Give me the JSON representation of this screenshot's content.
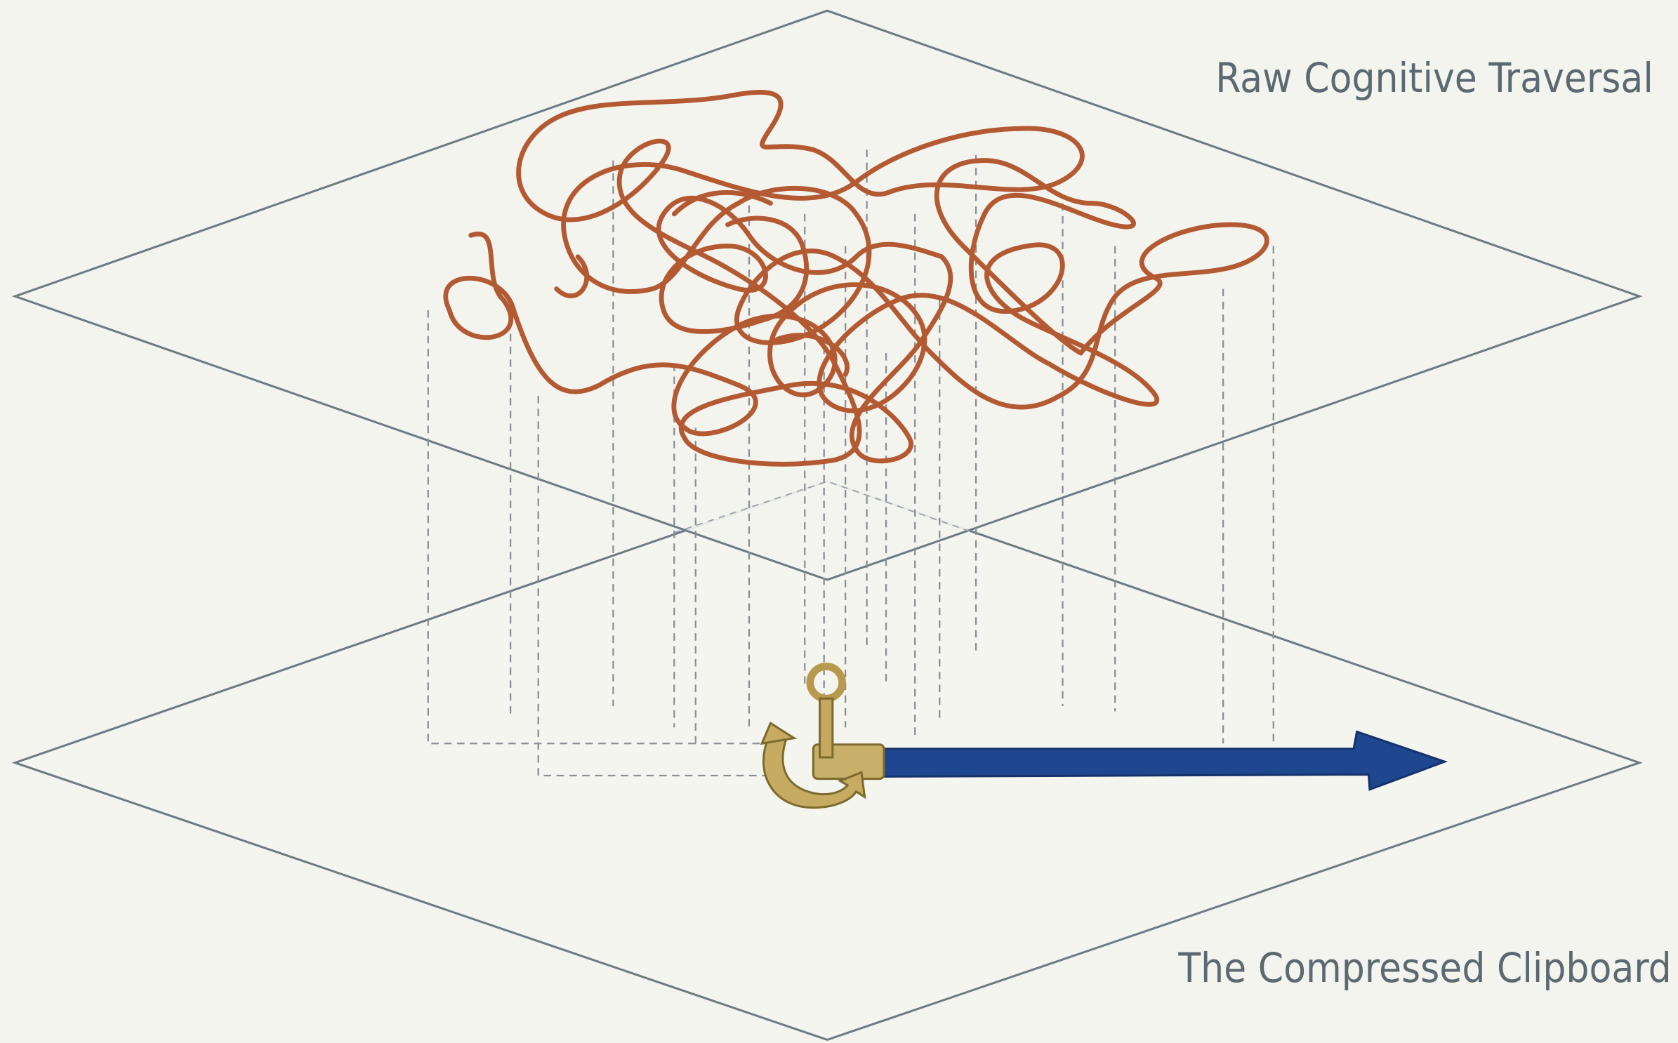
{
  "labels": {
    "top_plane": "Raw Cognitive Traversal",
    "bottom_plane": "The Compressed Clipboard"
  }
}
